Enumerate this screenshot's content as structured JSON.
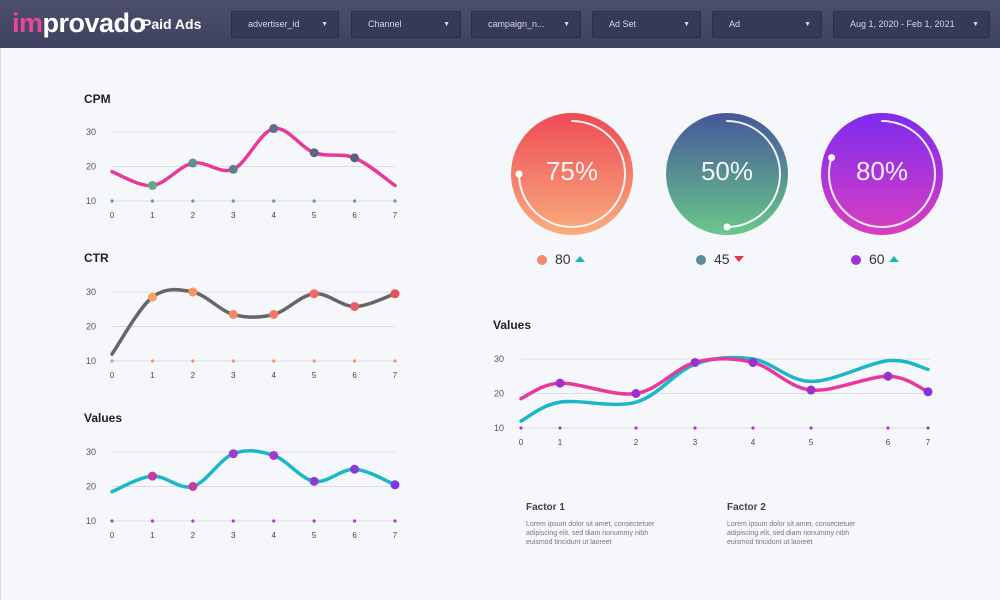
{
  "header": {
    "logo_accent": "im",
    "logo_rest": "provado",
    "page_title": "Paid Ads",
    "filters": [
      {
        "label": "advertiser_id"
      },
      {
        "label": "Channel"
      },
      {
        "label": "campaign_n..."
      },
      {
        "label": "Ad Set"
      },
      {
        "label": "Ad"
      },
      {
        "label": "Aug 1, 2020 - Feb 1, 2021"
      }
    ],
    "caret_icon": "chevron-down-icon"
  },
  "colors": {
    "header_bg": "#454862",
    "magenta": "#e8399a",
    "teal": "#19b7c8",
    "gray_line": "#666666",
    "purple_dot": "#9b2fd1",
    "up": "#1ab6a8",
    "down": "#e8334a"
  },
  "gauges": [
    {
      "value_text": "75%",
      "percent": 75,
      "stat_value": "80",
      "trend": "up",
      "dot_color": "#f58a6a"
    },
    {
      "value_text": "50%",
      "percent": 50,
      "stat_value": "45",
      "trend": "down",
      "dot_color": "#5b8e9a"
    },
    {
      "value_text": "80%",
      "percent": 80,
      "stat_value": "60",
      "trend": "up",
      "dot_color": "#9b30d9"
    }
  ],
  "factors": [
    {
      "title": "Factor 1",
      "text": "Lorem ipsum dolor sit amet, consectetuer adipiscing elit, sed diam nonummy nibh euismod tincidunt ut laoreet"
    },
    {
      "title": "Factor 2",
      "text": "Lorem ipsum dolor sit amet, consectetuer adipiscing elit, sed diam nonummy nibh euismod tincidunt ut laoreet"
    }
  ],
  "chart_data": [
    {
      "type": "line",
      "title": "CPM",
      "x": [
        0,
        1,
        2,
        3,
        4,
        5,
        6,
        7
      ],
      "yticks": [
        10,
        20,
        30
      ],
      "ylim": [
        10,
        30
      ],
      "series": [
        {
          "color": "#e8399a",
          "values": [
            18.5,
            14.5,
            21,
            19.2,
            31,
            24,
            22.5,
            14.5
          ],
          "markers": [
            1,
            2,
            3,
            4,
            5,
            6
          ],
          "marker_colors": [
            "#5fa88a",
            "#5f8f8f",
            "#5f7f8f",
            "#5f6e8f",
            "#5f638a",
            "#5a5f84"
          ]
        }
      ],
      "baseline_dot_color": "#5fa08c"
    },
    {
      "type": "line",
      "title": "CTR",
      "x": [
        0,
        1,
        2,
        3,
        4,
        5,
        6,
        7
      ],
      "yticks": [
        10,
        20,
        30
      ],
      "ylim": [
        10,
        30
      ],
      "series": [
        {
          "color": "#666666",
          "values": [
            12,
            28.5,
            30,
            23.5,
            23.5,
            29.5,
            25.8,
            29.5
          ],
          "markers": [
            1,
            2,
            3,
            4,
            5,
            6,
            7
          ],
          "marker_colors": [
            "#f7a263",
            "#f79463",
            "#f78663",
            "#f77863",
            "#f46a63",
            "#ec5d63",
            "#e8505a"
          ]
        }
      ],
      "baseline_dot_color": "#f59263"
    },
    {
      "type": "line",
      "title": "Values",
      "x": [
        0,
        1,
        2,
        3,
        4,
        5,
        6,
        7
      ],
      "yticks": [
        10,
        20,
        30
      ],
      "ylim": [
        10,
        30
      ],
      "series": [
        {
          "color": "#19b7c8",
          "values": [
            18.5,
            23,
            20,
            29.5,
            29,
            21.5,
            25,
            20.5
          ],
          "markers": [
            1,
            2,
            3,
            4,
            5,
            6,
            7
          ],
          "marker_colors": [
            "#c83aa8",
            "#c83aa8",
            "#a83ac8",
            "#a83ac8",
            "#8c3ad8",
            "#8c3ad8",
            "#7a3ae8"
          ]
        }
      ],
      "baseline_dot_color": "#b03ac8"
    },
    {
      "type": "line",
      "title": "Values",
      "x": [
        0,
        1,
        2,
        3,
        4,
        5,
        6,
        7
      ],
      "yticks": [
        10,
        20,
        30
      ],
      "ylim": [
        10,
        30
      ],
      "series": [
        {
          "color": "#e8399a",
          "values": [
            18.5,
            23,
            20,
            29,
            29,
            21,
            25,
            20.5
          ],
          "markers": [
            1,
            2,
            3,
            4,
            5,
            6,
            7
          ],
          "marker_colors": [
            "#9b2fd1",
            "#9b2fd1",
            "#9b2fd1",
            "#9b2fd1",
            "#9b2fd1",
            "#9b2fd1",
            "#8a2ee0"
          ]
        },
        {
          "color": "#19b7c8",
          "values": [
            12,
            17.5,
            17.5,
            28.5,
            30,
            23.5,
            29.5,
            27
          ],
          "markers": [],
          "marker_colors": []
        }
      ],
      "baseline_dot_color": "#b03ac8"
    }
  ]
}
